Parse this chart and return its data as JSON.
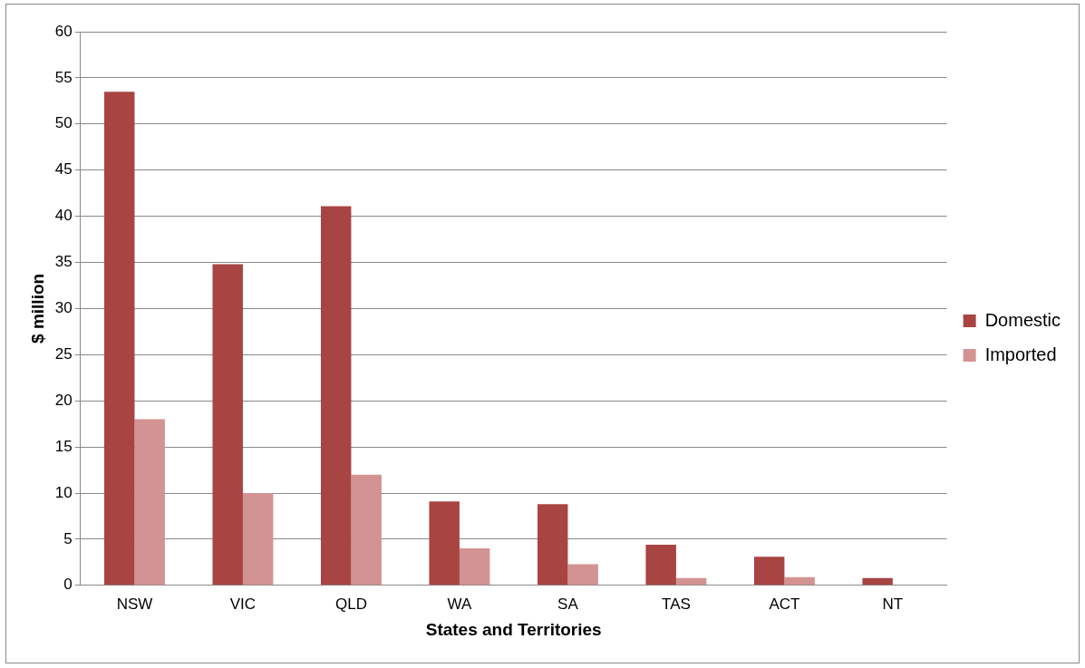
{
  "chart_data": {
    "type": "bar",
    "xlabel": "States and Territories",
    "ylabel": "$ million",
    "categories": [
      "NSW",
      "VIC",
      "QLD",
      "WA",
      "SA",
      "TAS",
      "ACT",
      "NT"
    ],
    "series": [
      {
        "name": "Domestic",
        "color": "#a84442",
        "values": [
          53.5,
          34.8,
          41.1,
          9.1,
          8.8,
          4.4,
          3.1,
          0.8
        ]
      },
      {
        "name": "Imported",
        "color": "#d39392",
        "values": [
          18,
          10,
          12,
          4,
          2.3,
          0.8,
          0.9,
          0
        ]
      }
    ],
    "ylim": [
      0,
      60
    ],
    "yticks": [
      0,
      5,
      10,
      15,
      20,
      25,
      30,
      35,
      40,
      45,
      50,
      55,
      60
    ],
    "grid": "y",
    "legend": "right"
  }
}
